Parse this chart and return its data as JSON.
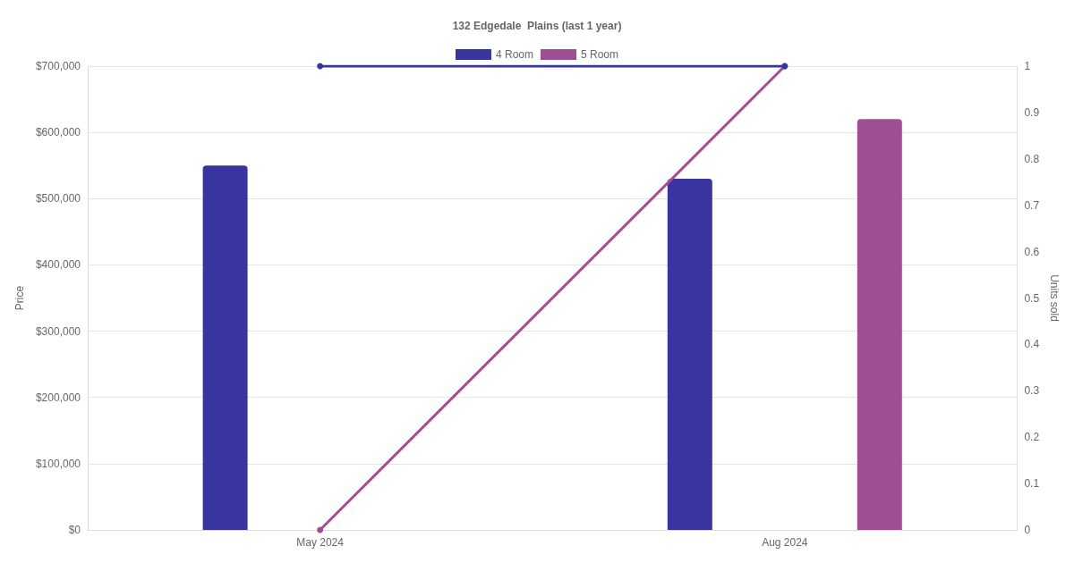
{
  "chart_data": {
    "type": "bar",
    "title": "132 Edgedale  Plains (last 1 year)",
    "ylabel": "Price",
    "y2label": "Units sold",
    "categories": [
      "May 2024",
      "Aug 2024"
    ],
    "series": [
      {
        "name": "4 Room",
        "color": "#3835a0",
        "values": [
          550000,
          530000
        ]
      },
      {
        "name": "5 Room",
        "color": "#9e4f94",
        "values": [
          null,
          620000
        ]
      },
      {
        "type": "line",
        "axis": "y2",
        "color": "#3835a0",
        "values": [
          1,
          1
        ]
      },
      {
        "type": "line",
        "axis": "y2",
        "color": "#9e4f94",
        "values": [
          0,
          1
        ]
      }
    ],
    "ylim": [
      0,
      700000
    ],
    "yticks": [
      {
        "value": 0,
        "label": "$0"
      },
      {
        "value": 100000,
        "label": "$100,000"
      },
      {
        "value": 200000,
        "label": "$200,000"
      },
      {
        "value": 300000,
        "label": "$300,000"
      },
      {
        "value": 400000,
        "label": "$400,000"
      },
      {
        "value": 500000,
        "label": "$500,000"
      },
      {
        "value": 600000,
        "label": "$600,000"
      },
      {
        "value": 700000,
        "label": "$700,000"
      }
    ],
    "y2lim": [
      0,
      1
    ],
    "y2ticks": [
      0,
      0.1,
      0.2,
      0.3,
      0.4,
      0.5,
      0.6,
      0.7,
      0.8,
      0.9,
      1
    ],
    "grid": "y",
    "legend": "top",
    "marker": "circle"
  }
}
